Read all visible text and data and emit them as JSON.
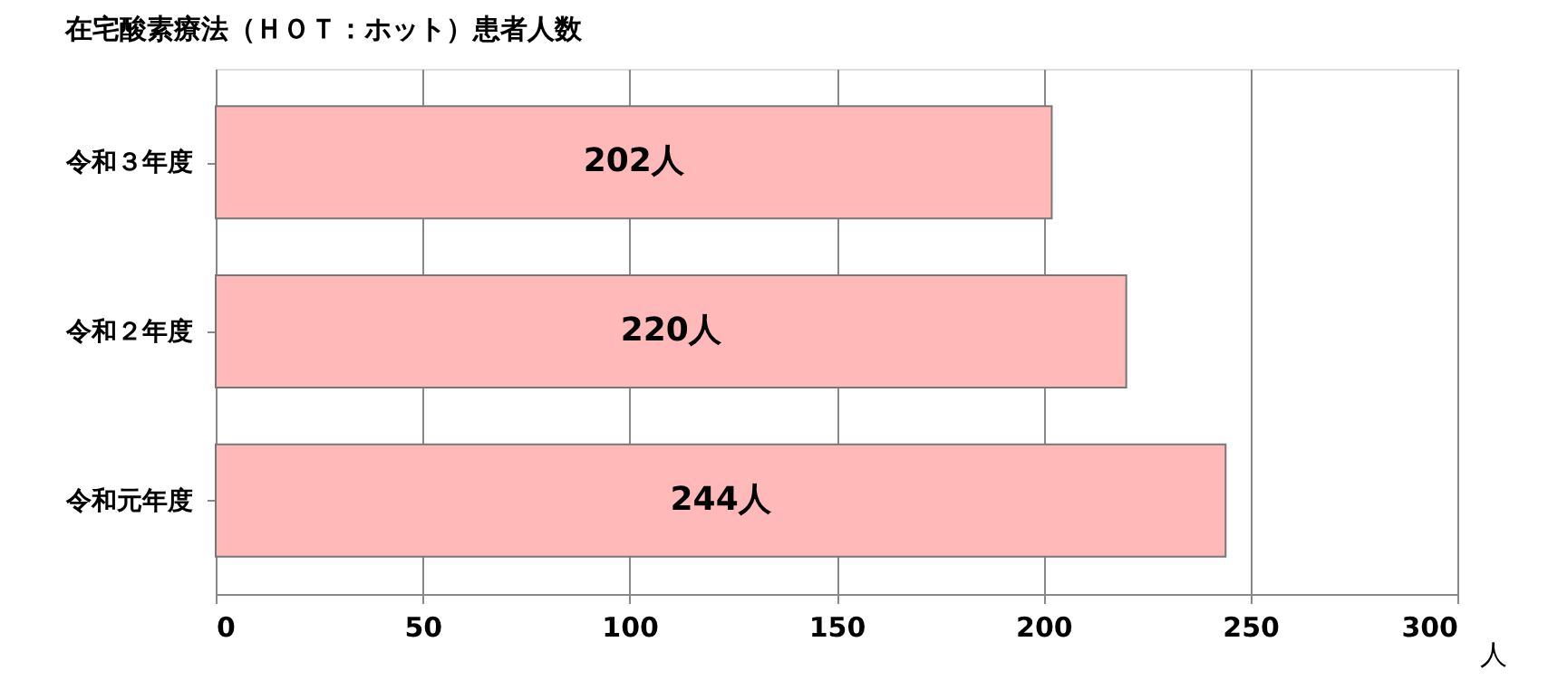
{
  "chart_data": {
    "type": "bar",
    "orientation": "horizontal",
    "title": "在宅酸素療法（ＨＯＴ：ホット）患者人数",
    "categories": [
      "令和３年度",
      "令和２年度",
      "令和元年度"
    ],
    "values": [
      202,
      220,
      244
    ],
    "value_labels": [
      "202人",
      "220人",
      "244人"
    ],
    "color": "#ffb9b9",
    "xlabel": "人",
    "xlim": [
      0,
      300
    ],
    "xticks": [
      0,
      50,
      100,
      150,
      200,
      250,
      300
    ],
    "grid": "x"
  }
}
